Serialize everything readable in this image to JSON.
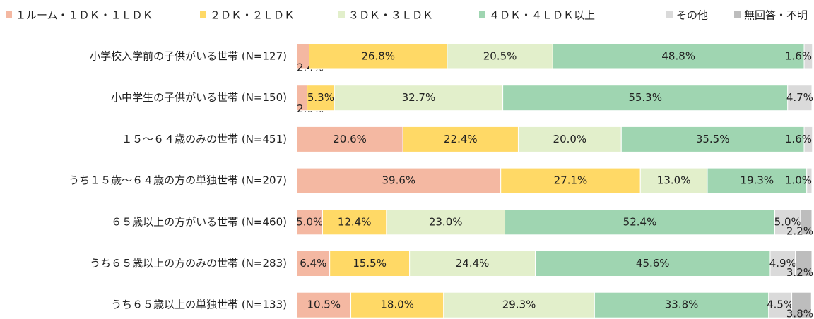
{
  "chart_data": {
    "type": "stacked_bar_horizontal",
    "categories": [
      "小学校入学前の子供がいる世帯 (N=127)",
      "小中学生の子供がいる世帯 (N=150)",
      "１５～６４歳のみの世帯 (N=451)",
      "うち１５歳～６４歳の方の単独世帯 (N=207)",
      "６５歳以上の方がいる世帯 (N=460)",
      "うち６５歳以上の方のみの世帯 (N=283)",
      "うち６５歳以上の単独世帯 (N=133)"
    ],
    "xlim": [
      0,
      100
    ],
    "legend": "top",
    "series": [
      {
        "name": "１ルーム・１ＤＫ・１ＬＤＫ",
        "color": "#f4b8a2",
        "values": [
          2.4,
          2.0,
          20.6,
          39.6,
          5.0,
          6.4,
          10.5
        ],
        "value_labels": [
          "2.4%",
          "2.0%",
          "20.6%",
          "39.6%",
          "5.0%",
          "6.4%",
          "10.5%"
        ]
      },
      {
        "name": "２ＤＫ・２ＬＤＫ",
        "color": "#ffd966",
        "values": [
          26.8,
          5.3,
          22.4,
          27.1,
          12.4,
          15.5,
          18.0
        ],
        "value_labels": [
          "26.8%",
          "5.3%",
          "22.4%",
          "27.1%",
          "12.4%",
          "15.5%",
          "18.0%"
        ]
      },
      {
        "name": "３ＤＫ・３ＬＤＫ",
        "color": "#e2efcb",
        "values": [
          20.5,
          32.7,
          20.0,
          13.0,
          23.0,
          24.4,
          29.3
        ],
        "value_labels": [
          "20.5%",
          "32.7%",
          "20.0%",
          "13.0%",
          "23.0%",
          "24.4%",
          "29.3%"
        ]
      },
      {
        "name": "４ＤＫ・４ＬＤＫ以上",
        "color": "#9fd5b1",
        "values": [
          48.8,
          55.3,
          35.5,
          19.3,
          52.4,
          45.6,
          33.8
        ],
        "value_labels": [
          "48.8%",
          "55.3%",
          "35.5%",
          "19.3%",
          "52.4%",
          "45.6%",
          "33.8%"
        ]
      },
      {
        "name": "その他",
        "color": "#dadada",
        "values": [
          1.6,
          4.7,
          1.6,
          1.0,
          5.0,
          4.9,
          4.5
        ],
        "value_labels": [
          "1.6%",
          "4.7%",
          "1.6%",
          "1.0%",
          "5.0%",
          "4.9%",
          "4.5%"
        ]
      },
      {
        "name": "無回答・不明",
        "color": "#bdbdbd",
        "values": [
          0,
          0,
          0,
          0,
          2.2,
          3.2,
          3.8
        ],
        "value_labels": [
          null,
          null,
          null,
          null,
          "2.2%",
          "3.2%",
          "3.8%"
        ]
      }
    ]
  }
}
